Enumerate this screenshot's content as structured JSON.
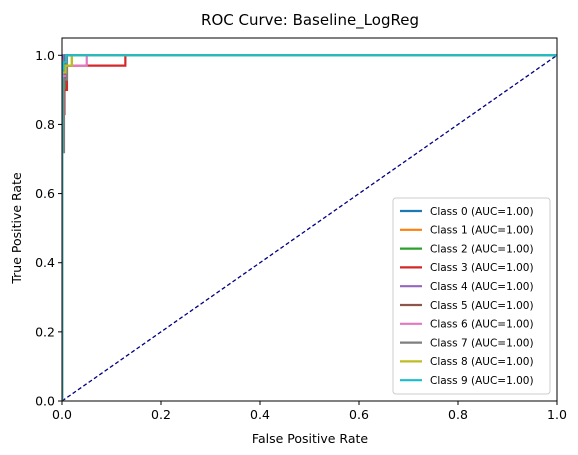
{
  "chart_data": {
    "type": "line",
    "title": "ROC Curve: Baseline_LogReg",
    "xlabel": "False Positive Rate",
    "ylabel": "True Positive Rate",
    "xlim": [
      0.0,
      1.0
    ],
    "ylim": [
      0.0,
      1.05
    ],
    "x_ticks": [
      0.0,
      0.2,
      0.4,
      0.6,
      0.8,
      1.0
    ],
    "y_ticks": [
      0.0,
      0.2,
      0.4,
      0.6,
      0.8,
      1.0
    ],
    "x_tick_labels": [
      "0.0",
      "0.2",
      "0.4",
      "0.6",
      "0.8",
      "1.0"
    ],
    "y_tick_labels": [
      "0.0",
      "0.2",
      "0.4",
      "0.6",
      "0.8",
      "1.0"
    ],
    "grid": false,
    "legend_position": "lower-right",
    "diagonal": {
      "x": [
        0,
        1
      ],
      "y": [
        0,
        1
      ],
      "color": "#000080",
      "style": "dashed"
    },
    "series": [
      {
        "name": "Class 0 (AUC=1.00)",
        "color": "#1f77b4",
        "x": [
          0,
          0,
          0.003,
          1.0
        ],
        "y": [
          0,
          0.98,
          1.0,
          1.0
        ]
      },
      {
        "name": "Class 1 (AUC=1.00)",
        "color": "#ff7f0e",
        "x": [
          0,
          0,
          0.006,
          1.0
        ],
        "y": [
          0,
          0.97,
          1.0,
          1.0
        ]
      },
      {
        "name": "Class 2 (AUC=1.00)",
        "color": "#2ca02c",
        "x": [
          0,
          0,
          0.006,
          0.006,
          0.02,
          0.02,
          1.0
        ],
        "y": [
          0,
          0.9,
          0.9,
          0.97,
          0.97,
          1.0,
          1.0
        ]
      },
      {
        "name": "Class 3 (AUC=1.00)",
        "color": "#d62728",
        "x": [
          0,
          0,
          0.005,
          0.005,
          0.01,
          0.01,
          0.128,
          0.128,
          1.0
        ],
        "y": [
          0,
          0.83,
          0.83,
          0.9,
          0.9,
          0.97,
          0.97,
          1.0,
          1.0
        ]
      },
      {
        "name": "Class 4 (AUC=1.00)",
        "color": "#9467bd",
        "x": [
          0,
          0,
          0.004,
          0.004,
          1.0
        ],
        "y": [
          0,
          0.93,
          0.93,
          1.0,
          1.0
        ]
      },
      {
        "name": "Class 5 (AUC=1.00)",
        "color": "#8c564b",
        "x": [
          0,
          0,
          0.007,
          0.007,
          1.0
        ],
        "y": [
          0,
          0.92,
          0.92,
          1.0,
          1.0
        ]
      },
      {
        "name": "Class 6 (AUC=1.00)",
        "color": "#e377c2",
        "x": [
          0,
          0,
          0.01,
          0.01,
          0.05,
          0.05,
          1.0
        ],
        "y": [
          0,
          0.94,
          0.94,
          0.97,
          0.97,
          1.0,
          1.0
        ]
      },
      {
        "name": "Class 7 (AUC=1.00)",
        "color": "#7f7f7f",
        "x": [
          0,
          0,
          0.004,
          0.004,
          0.01,
          0.01,
          1.0
        ],
        "y": [
          0,
          0.72,
          0.72,
          0.93,
          0.93,
          1.0,
          1.0
        ]
      },
      {
        "name": "Class 8 (AUC=1.00)",
        "color": "#bcbd22",
        "x": [
          0,
          0,
          0.007,
          0.007,
          0.02,
          0.02,
          1.0
        ],
        "y": [
          0,
          0.95,
          0.95,
          0.97,
          0.97,
          1.0,
          1.0
        ]
      },
      {
        "name": "Class 9 (AUC=1.00)",
        "color": "#17becf",
        "x": [
          0,
          0,
          0.003,
          0.003,
          0.008,
          0.008,
          1.0
        ],
        "y": [
          0,
          0.96,
          0.96,
          0.98,
          0.98,
          1.0,
          1.0
        ]
      }
    ]
  }
}
